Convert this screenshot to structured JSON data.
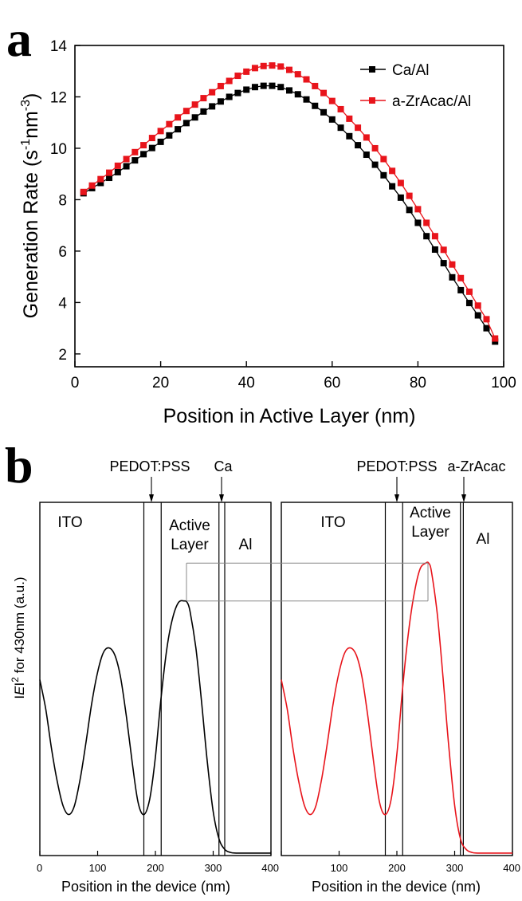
{
  "panels": {
    "a": {
      "letter": "a"
    },
    "b": {
      "letter": "b"
    }
  },
  "colors": {
    "black_series": "#000000",
    "red_series": "#e8141b",
    "guide": "#888888"
  },
  "chart_data": [
    {
      "type": "line",
      "panel": "a",
      "title": "",
      "xlabel": "Position in Active Layer (nm)",
      "ylabel_parts": [
        "Generation Rate (s",
        "-1",
        "nm",
        "-3",
        ")"
      ],
      "xlim": [
        0,
        100
      ],
      "ylim": [
        1.5,
        14
      ],
      "xticks": [
        0,
        20,
        40,
        60,
        80,
        100
      ],
      "yticks": [
        2,
        4,
        6,
        8,
        10,
        12,
        14
      ],
      "legend_position": "top-right",
      "grid": false,
      "series": [
        {
          "name": "Ca/Al",
          "color": "#000000",
          "marker": "square",
          "x": [
            2,
            4,
            6,
            8,
            10,
            12,
            14,
            16,
            18,
            20,
            22,
            24,
            26,
            28,
            30,
            32,
            34,
            36,
            38,
            40,
            42,
            44,
            46,
            48,
            50,
            52,
            54,
            56,
            58,
            60,
            62,
            64,
            66,
            68,
            70,
            72,
            74,
            76,
            78,
            80,
            82,
            84,
            86,
            88,
            90,
            92,
            94,
            96,
            98
          ],
          "values": [
            8.25,
            8.45,
            8.65,
            8.85,
            9.07,
            9.3,
            9.53,
            9.77,
            10.01,
            10.25,
            10.5,
            10.74,
            10.98,
            11.2,
            11.43,
            11.63,
            11.82,
            12.0,
            12.15,
            12.28,
            12.38,
            12.43,
            12.43,
            12.38,
            12.25,
            12.1,
            11.9,
            11.65,
            11.4,
            11.12,
            10.8,
            10.47,
            10.12,
            9.75,
            9.36,
            8.95,
            8.52,
            8.08,
            7.6,
            7.1,
            6.58,
            6.06,
            5.53,
            4.98,
            4.48,
            3.98,
            3.5,
            3.0,
            2.48
          ]
        },
        {
          "name": "a-ZrAcac/Al",
          "color": "#e8141b",
          "marker": "square",
          "x": [
            2,
            4,
            6,
            8,
            10,
            12,
            14,
            16,
            18,
            20,
            22,
            24,
            26,
            28,
            30,
            32,
            34,
            36,
            38,
            40,
            42,
            44,
            46,
            48,
            50,
            52,
            54,
            56,
            58,
            60,
            62,
            64,
            66,
            68,
            70,
            72,
            74,
            76,
            78,
            80,
            82,
            84,
            86,
            88,
            90,
            92,
            94,
            96,
            98
          ],
          "values": [
            8.3,
            8.55,
            8.8,
            9.05,
            9.32,
            9.58,
            9.85,
            10.12,
            10.4,
            10.67,
            10.94,
            11.2,
            11.45,
            11.7,
            11.95,
            12.18,
            12.42,
            12.62,
            12.82,
            12.98,
            13.12,
            13.2,
            13.22,
            13.18,
            13.05,
            12.88,
            12.68,
            12.42,
            12.15,
            11.84,
            11.52,
            11.15,
            10.8,
            10.42,
            10.0,
            9.58,
            9.12,
            8.65,
            8.15,
            7.63,
            7.1,
            6.58,
            6.05,
            5.48,
            4.95,
            4.42,
            3.88,
            3.35,
            2.6
          ]
        }
      ]
    },
    {
      "type": "line",
      "panel": "b-left",
      "title": "",
      "xlabel": "Position in the device (nm)",
      "ylabel_parts": [
        "I",
        "E",
        "I",
        "2",
        " for 430nm (a.u.)"
      ],
      "xlim": [
        0,
        400
      ],
      "xticks": [
        0,
        100,
        200,
        300,
        400
      ],
      "tick_labels_shown": [
        "0",
        "100",
        "200",
        "300",
        "400"
      ],
      "layer_labels": [
        "ITO",
        "Active",
        "Layer",
        "Al"
      ],
      "arrow_labels": [
        "PEDOT:PSS",
        "Ca"
      ],
      "layer_boundaries": [
        180,
        210,
        310,
        320
      ],
      "series": [
        {
          "color": "#000000",
          "x": [
            0,
            10,
            20,
            30,
            40,
            50,
            60,
            70,
            80,
            90,
            100,
            110,
            120,
            130,
            140,
            150,
            160,
            170,
            180,
            190,
            200,
            210,
            220,
            230,
            240,
            250,
            255,
            260,
            270,
            280,
            290,
            300,
            310,
            320,
            330,
            340,
            360,
            380,
            400
          ],
          "values": [
            0.575,
            0.48,
            0.35,
            0.24,
            0.16,
            0.13,
            0.16,
            0.25,
            0.37,
            0.5,
            0.6,
            0.665,
            0.68,
            0.655,
            0.58,
            0.45,
            0.3,
            0.17,
            0.13,
            0.18,
            0.32,
            0.52,
            0.68,
            0.78,
            0.83,
            0.835,
            0.83,
            0.8,
            0.68,
            0.5,
            0.3,
            0.14,
            0.05,
            0.015,
            0.005,
            0.003,
            0.003,
            0.003,
            0.003
          ]
        }
      ]
    },
    {
      "type": "line",
      "panel": "b-right",
      "title": "",
      "xlabel": "Position in the device (nm)",
      "xlim": [
        0,
        400
      ],
      "xticks": [
        0,
        100,
        200,
        300,
        400
      ],
      "tick_labels_shown": [
        "",
        "100",
        "200",
        "300",
        "400"
      ],
      "layer_labels": [
        "ITO",
        "Active",
        "Layer",
        "Al"
      ],
      "arrow_labels": [
        "PEDOT:PSS",
        "a-ZrAcac"
      ],
      "layer_boundaries": [
        180,
        210,
        310,
        315
      ],
      "series": [
        {
          "color": "#e8141b",
          "x": [
            0,
            10,
            20,
            30,
            40,
            50,
            60,
            70,
            80,
            90,
            100,
            110,
            120,
            130,
            140,
            150,
            160,
            170,
            180,
            190,
            200,
            210,
            220,
            230,
            240,
            250,
            255,
            260,
            270,
            280,
            290,
            300,
            310,
            320,
            330,
            340,
            360,
            380,
            400
          ],
          "values": [
            0.575,
            0.48,
            0.35,
            0.24,
            0.16,
            0.13,
            0.16,
            0.25,
            0.37,
            0.5,
            0.6,
            0.665,
            0.68,
            0.655,
            0.58,
            0.45,
            0.3,
            0.17,
            0.13,
            0.18,
            0.33,
            0.55,
            0.73,
            0.86,
            0.94,
            0.96,
            0.96,
            0.93,
            0.79,
            0.58,
            0.35,
            0.16,
            0.05,
            0.015,
            0.005,
            0.003,
            0.003,
            0.003,
            0.003
          ]
        }
      ]
    }
  ]
}
